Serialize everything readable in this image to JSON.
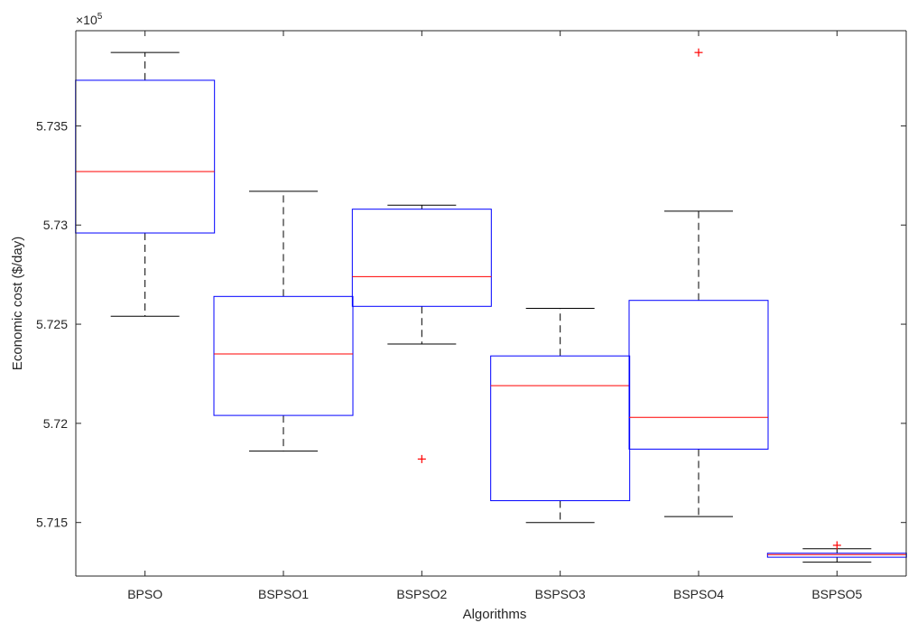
{
  "chart_data": {
    "type": "box",
    "title": "",
    "xlabel": "Algorithms",
    "ylabel": "Economic cost ($/day)",
    "y_exponent_label": "×10",
    "y_exponent_power": "5",
    "y_exponent": 5,
    "ylim": [
      5.7123,
      5.7398
    ],
    "yticks": [
      5.715,
      5.72,
      5.725,
      5.73,
      5.735
    ],
    "ytick_labels": [
      "5.715",
      "5.72",
      "5.725",
      "5.73",
      "5.735"
    ],
    "categories": [
      "BPSO",
      "BSPSO1",
      "BSPSO2",
      "BSPSO3",
      "BSPSO4",
      "BSPSO5"
    ],
    "boxes": [
      {
        "label": "BPSO",
        "whisker_low": 5.7254,
        "q1": 5.7296,
        "median": 5.7327,
        "q3": 5.7373,
        "whisker_high": 5.7387,
        "outliers": []
      },
      {
        "label": "BSPSO1",
        "whisker_low": 5.7186,
        "q1": 5.7204,
        "median": 5.7235,
        "q3": 5.7264,
        "whisker_high": 5.7317,
        "outliers": []
      },
      {
        "label": "BSPSO2",
        "whisker_low": 5.724,
        "q1": 5.7259,
        "median": 5.7274,
        "q3": 5.7308,
        "whisker_high": 5.731,
        "outliers": [
          5.7182
        ]
      },
      {
        "label": "BSPSO3",
        "whisker_low": 5.715,
        "q1": 5.7161,
        "median": 5.7219,
        "q3": 5.7234,
        "whisker_high": 5.7258,
        "outliers": []
      },
      {
        "label": "BSPSO4",
        "whisker_low": 5.7153,
        "q1": 5.7187,
        "median": 5.7203,
        "q3": 5.7262,
        "whisker_high": 5.7307,
        "outliers": [
          5.7387
        ]
      },
      {
        "label": "BSPSO5",
        "whisker_low": 5.713,
        "q1": 5.71325,
        "median": 5.71338,
        "q3": 5.71345,
        "whisker_high": 5.71368,
        "outliers": [
          5.71385
        ]
      }
    ],
    "colors": {
      "box": "#0000ff",
      "median": "#ff0000",
      "whisker": "#000000",
      "outlier": "#ff0000",
      "axis": "#262626"
    },
    "grid": false,
    "legend": "none"
  }
}
